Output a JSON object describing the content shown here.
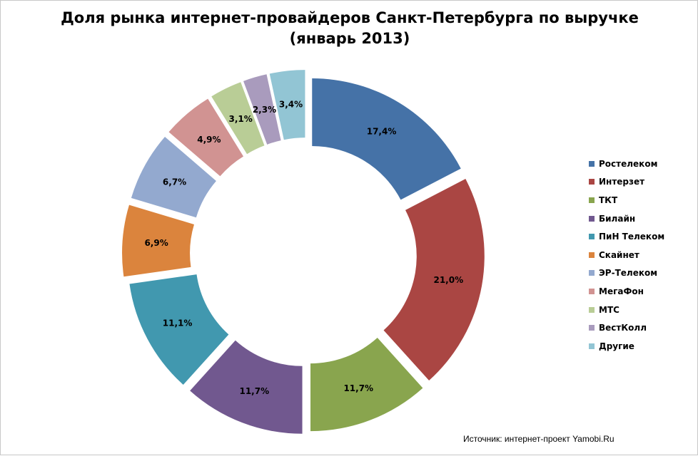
{
  "chart_data": {
    "type": "pie",
    "title": "Доля рынка интернет-провайдеров Санкт-Петербурга по выручке (январь 2013)",
    "categories": [
      "Ростелеком",
      "Интерзет",
      "ТКТ",
      "Билайн",
      "ПиН Телеком",
      "Скайнет",
      "ЭР-Телеком",
      "МегаФон",
      "МТС",
      "ВестКолл",
      "Другие"
    ],
    "values": [
      17.4,
      21.0,
      11.7,
      11.7,
      11.1,
      6.9,
      6.7,
      4.9,
      3.1,
      2.3,
      3.4
    ],
    "labels": [
      "17,4%",
      "21,0%",
      "11,7%",
      "11,7%",
      "11,1%",
      "6,9%",
      "6,7%",
      "4,9%",
      "3,1%",
      "2,3%",
      "3,4%"
    ],
    "colors": [
      "#4572A7",
      "#AA4643",
      "#89A54E",
      "#71588F",
      "#4198AF",
      "#DB843D",
      "#93A9CF",
      "#D19392",
      "#B9CD96",
      "#A99BBD",
      "#92C5D4"
    ],
    "donut": true,
    "exploded": true,
    "legend_position": "right"
  },
  "source": "Источник: интернет-проект  Yamobi.Ru"
}
